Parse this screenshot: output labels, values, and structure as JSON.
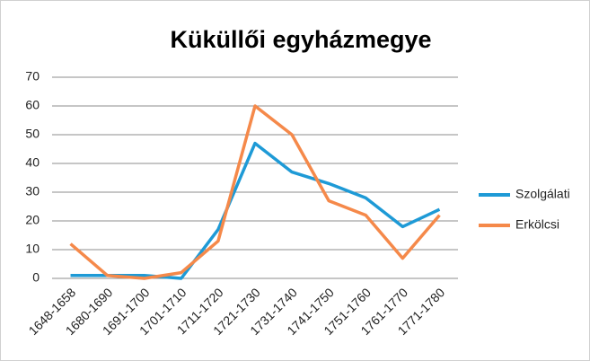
{
  "chart_data": {
    "type": "line",
    "title": "Küküllői egyházmegye",
    "categories": [
      "1648-1658",
      "1680-1690",
      "1691-1700",
      "1701-1710",
      "1711-1720",
      "1721-1730",
      "1731-1740",
      "1741-1750",
      "1751-1760",
      "1761-1770",
      "1771-1780"
    ],
    "series": [
      {
        "name": "Szolgálati",
        "color": "#1e9ad6",
        "values": [
          1,
          1,
          1,
          0,
          17,
          47,
          37,
          33,
          28,
          18,
          24
        ]
      },
      {
        "name": "Erkölcsi",
        "color": "#f5894a",
        "values": [
          12,
          1,
          0,
          2,
          13,
          60,
          50,
          27,
          22,
          7,
          22
        ]
      }
    ],
    "ylim": [
      0,
      70
    ],
    "yticks": [
      0,
      10,
      20,
      30,
      40,
      50,
      60,
      70
    ],
    "grid": true,
    "legend": "right"
  }
}
